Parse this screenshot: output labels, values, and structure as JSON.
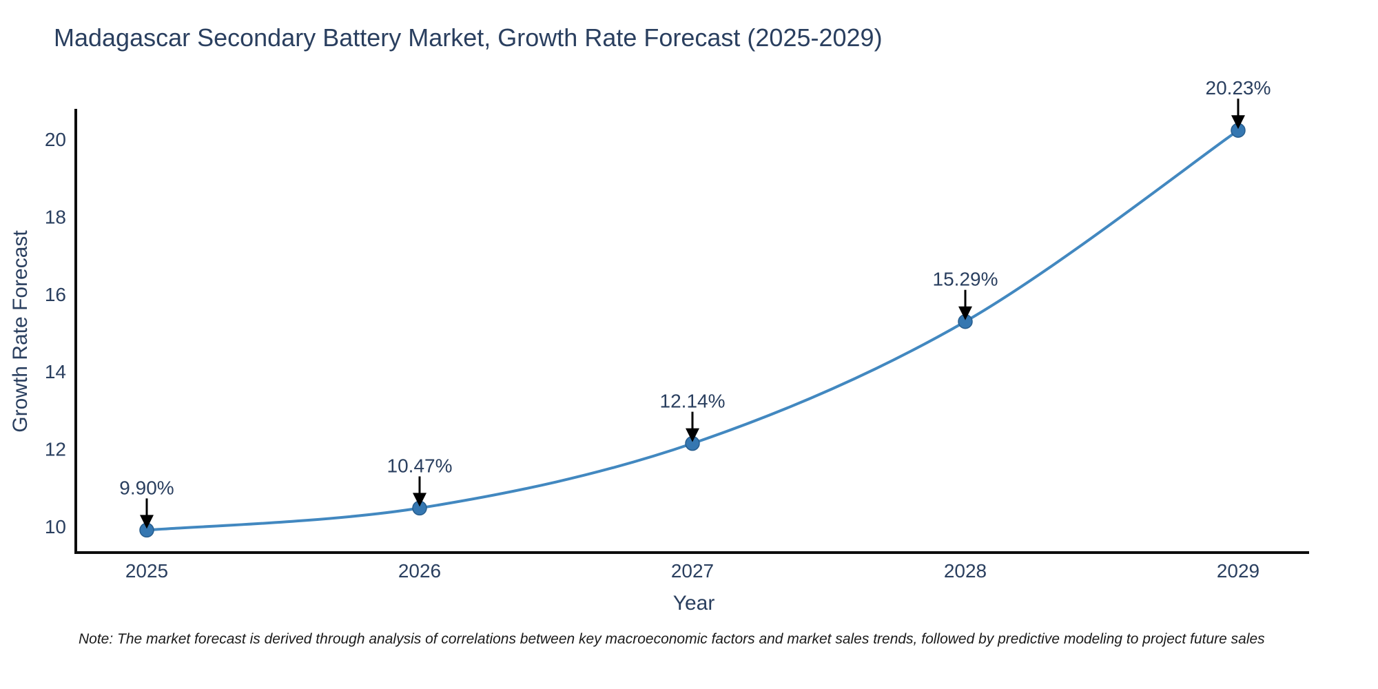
{
  "chart_data": {
    "type": "line",
    "title": "Madagascar Secondary Battery Market, Growth Rate Forecast (2025-2029)",
    "xlabel": "Year",
    "ylabel": "Growth Rate Forecast",
    "x": [
      2025,
      2026,
      2027,
      2028,
      2029
    ],
    "y": [
      9.9,
      10.47,
      12.14,
      15.29,
      20.23
    ],
    "point_labels": [
      "9.90%",
      "10.47%",
      "12.14%",
      "15.29%",
      "20.23%"
    ],
    "x_tick_labels": [
      "2025",
      "2026",
      "2027",
      "2028",
      "2029"
    ],
    "y_tick_values": [
      10,
      12,
      14,
      16,
      18,
      20
    ],
    "y_tick_labels": [
      "10",
      "12",
      "14",
      "16",
      "18",
      "20"
    ],
    "xlim": [
      2024.74,
      2029.26
    ],
    "ylim": [
      9.32,
      20.75
    ],
    "grid": false,
    "legend": "none",
    "line_shape": "spline",
    "marker_size": 10,
    "colors": {
      "line": "#4288c0",
      "marker_fill": "#3577b1",
      "marker_edge": "#275d8d",
      "axis_line": "#0d0d0d",
      "text": "#2a3f5f",
      "annotation_arrow": "#000000",
      "note_text": "#1a1a1a",
      "background": "#ffffff"
    }
  },
  "note": {
    "text": "Note: The market forecast is derived through analysis of correlations between key macroeconomic factors and market sales trends, followed by predictive modeling to project future sales"
  }
}
